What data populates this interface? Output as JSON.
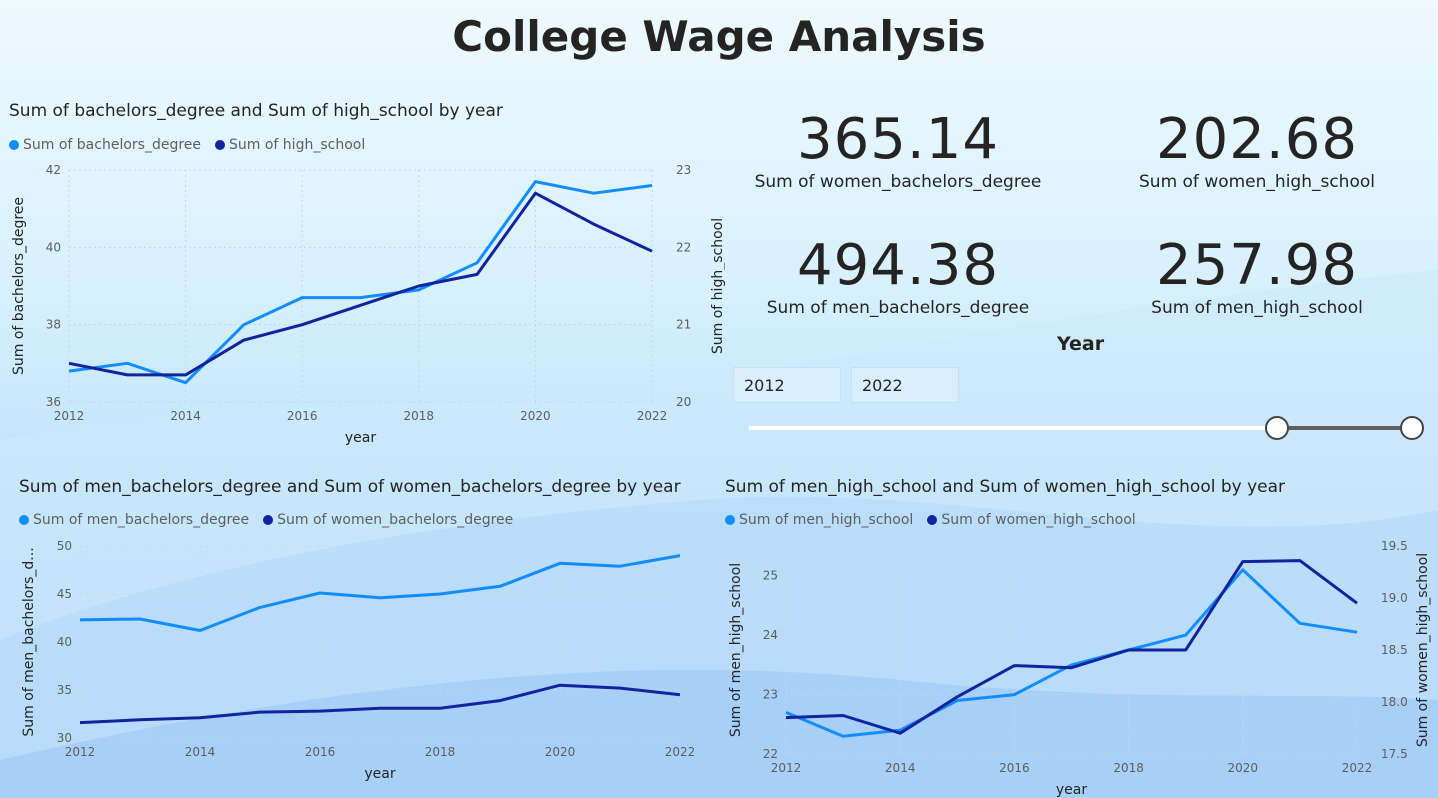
{
  "page_title": "College Wage Analysis",
  "colors": {
    "light_series": "#118dff",
    "dark_series": "#12239e",
    "text": "#252423",
    "muted": "#605e5c"
  },
  "kpis": [
    {
      "value": "365.14",
      "label": "Sum of women_bachelors_degree"
    },
    {
      "value": "202.68",
      "label": "Sum of women_high_school"
    },
    {
      "value": "494.38",
      "label": "Sum of men_bachelors_degree"
    },
    {
      "value": "257.98",
      "label": "Sum of men_high_school"
    }
  ],
  "slicer": {
    "title": "Year",
    "start": "2012",
    "end": "2022",
    "range_min": 2012,
    "range_max": 2022,
    "selected_start": 2012,
    "selected_end": 2022
  },
  "chart_data": [
    {
      "type": "line",
      "title": "Sum of bachelors_degree and Sum of high_school by year",
      "xlabel": "year",
      "x": [
        2012,
        2013,
        2014,
        2015,
        2016,
        2017,
        2018,
        2019,
        2020,
        2021,
        2022
      ],
      "x_ticks": [
        2012,
        2014,
        2016,
        2018,
        2020,
        2022
      ],
      "ylabel": "Sum of bachelors_degree",
      "ylim": [
        36,
        42
      ],
      "y_ticks": [
        36,
        38,
        40,
        42
      ],
      "y2label": "Sum of high_school",
      "y2lim": [
        20,
        23
      ],
      "y2_ticks": [
        20,
        21,
        22,
        23
      ],
      "legend_position": "top-left",
      "series": [
        {
          "name": "Sum of bachelors_degree",
          "axis": "left",
          "color": "#118dff",
          "values": [
            36.8,
            37.0,
            36.5,
            38.0,
            38.7,
            38.7,
            38.9,
            39.6,
            41.7,
            41.4,
            41.6
          ]
        },
        {
          "name": "Sum of high_school",
          "axis": "right",
          "color": "#12239e",
          "values": [
            20.5,
            20.35,
            20.35,
            20.8,
            21.0,
            21.25,
            21.5,
            21.65,
            22.7,
            22.3,
            21.95
          ]
        }
      ]
    },
    {
      "type": "line",
      "title": "Sum of men_bachelors_degree and Sum of women_bachelors_degree by year",
      "xlabel": "year",
      "x": [
        2012,
        2013,
        2014,
        2015,
        2016,
        2017,
        2018,
        2019,
        2020,
        2021,
        2022
      ],
      "x_ticks": [
        2012,
        2014,
        2016,
        2018,
        2020,
        2022
      ],
      "ylabel": "Sum of men_bachelors_d...",
      "ylim": [
        30,
        50
      ],
      "y_ticks": [
        30,
        35,
        40,
        45,
        50
      ],
      "legend_position": "top-left",
      "series": [
        {
          "name": "Sum of men_bachelors_degree",
          "axis": "left",
          "color": "#118dff",
          "values": [
            42.3,
            42.4,
            41.2,
            43.6,
            45.1,
            44.6,
            45.0,
            45.8,
            48.2,
            47.9,
            49.0
          ]
        },
        {
          "name": "Sum of women_bachelors_degree",
          "axis": "left",
          "color": "#12239e",
          "values": [
            31.6,
            31.9,
            32.1,
            32.7,
            32.8,
            33.1,
            33.1,
            33.9,
            35.5,
            35.2,
            34.5
          ]
        }
      ]
    },
    {
      "type": "line",
      "title": "Sum of men_high_school and Sum of women_high_school by year",
      "xlabel": "year",
      "x": [
        2012,
        2013,
        2014,
        2015,
        2016,
        2017,
        2018,
        2019,
        2020,
        2021,
        2022
      ],
      "x_ticks": [
        2012,
        2014,
        2016,
        2018,
        2020,
        2022
      ],
      "ylabel": "Sum of men_high_school",
      "ylim": [
        22,
        25.5
      ],
      "y_ticks": [
        22,
        23,
        24,
        25
      ],
      "y2label": "Sum of women_high_school",
      "y2lim": [
        17.5,
        19.5
      ],
      "y2_ticks": [
        17.5,
        18.0,
        18.5,
        19.0,
        19.5
      ],
      "legend_position": "top-left",
      "series": [
        {
          "name": "Sum of men_high_school",
          "axis": "left",
          "color": "#118dff",
          "values": [
            22.7,
            22.3,
            22.4,
            22.9,
            23.0,
            23.5,
            23.75,
            24.0,
            25.1,
            24.2,
            24.05
          ]
        },
        {
          "name": "Sum of women_high_school",
          "axis": "right",
          "color": "#12239e",
          "values": [
            17.85,
            17.87,
            17.7,
            18.05,
            18.35,
            18.33,
            18.5,
            18.5,
            19.35,
            19.36,
            18.95
          ]
        }
      ]
    }
  ]
}
